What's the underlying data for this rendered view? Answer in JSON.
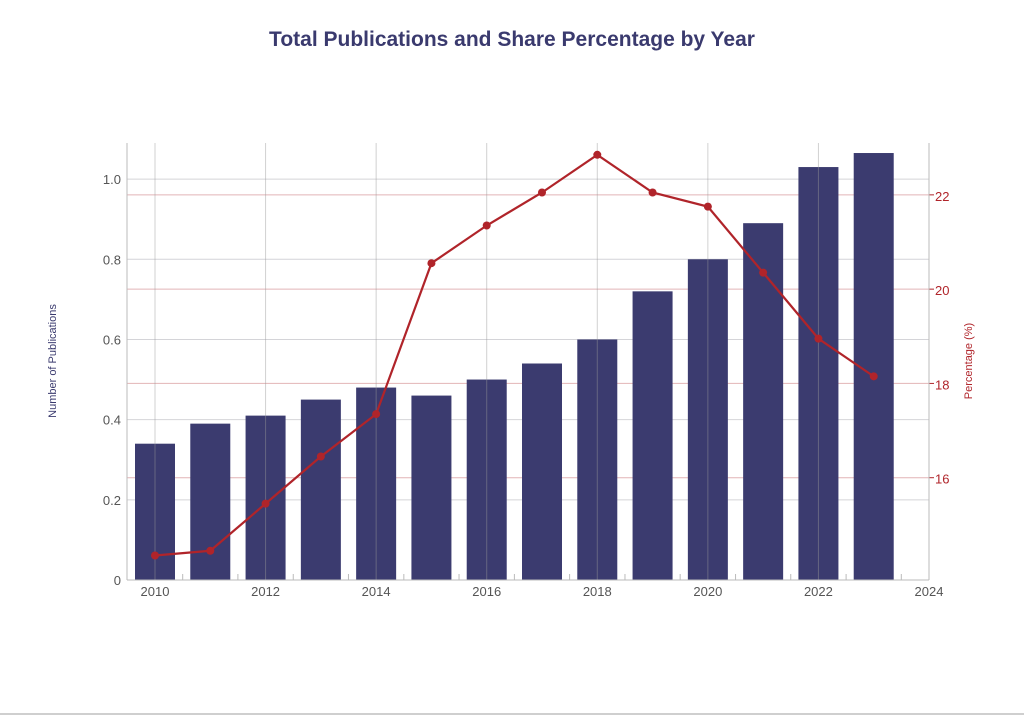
{
  "chart_data": {
    "type": "bar+line",
    "title": "Total Publications and Share Percentage by Year",
    "xlabel": "",
    "ylabel": "Number of Publications",
    "y2label": "Percentage (%)",
    "categories": [
      2010,
      2011,
      2012,
      2013,
      2014,
      2015,
      2016,
      2017,
      2018,
      2019,
      2020,
      2021,
      2022,
      2023
    ],
    "series": [
      {
        "name": "Number of Publications",
        "type": "bar",
        "axis": "left",
        "color": "#3b3b6f",
        "values": [
          0.34,
          0.39,
          0.41,
          0.45,
          0.48,
          0.46,
          0.5,
          0.54,
          0.6,
          0.72,
          0.8,
          0.89,
          1.03,
          1.065
        ]
      },
      {
        "name": "Percentage (%)",
        "type": "line",
        "axis": "right",
        "color": "#b0242a",
        "values": [
          14.35,
          14.45,
          15.45,
          16.45,
          17.35,
          20.55,
          21.35,
          22.05,
          22.85,
          22.05,
          21.75,
          20.35,
          18.95,
          18.15
        ]
      }
    ],
    "xlim": [
      2009.5,
      2024
    ],
    "xticks": [
      2010,
      2012,
      2014,
      2016,
      2018,
      2020,
      2022,
      2024
    ],
    "xtick_labels": [
      "2010",
      "2012",
      "2014",
      "2016",
      "2018",
      "2020",
      "2022",
      "2024"
    ],
    "ylim": [
      0,
      1.09
    ],
    "yticks": [
      0,
      0.2,
      0.4,
      0.6,
      0.8,
      1.0
    ],
    "ytick_labels": [
      "0",
      "0.2",
      "0.4",
      "0.6",
      "0.8",
      "1.0"
    ],
    "y2lim": [
      13.83,
      23.1
    ],
    "y2ticks": [
      16,
      18,
      20,
      22
    ],
    "y2tick_labels": [
      "16",
      "18",
      "20",
      "22"
    ],
    "grid": true,
    "legend": "none"
  }
}
